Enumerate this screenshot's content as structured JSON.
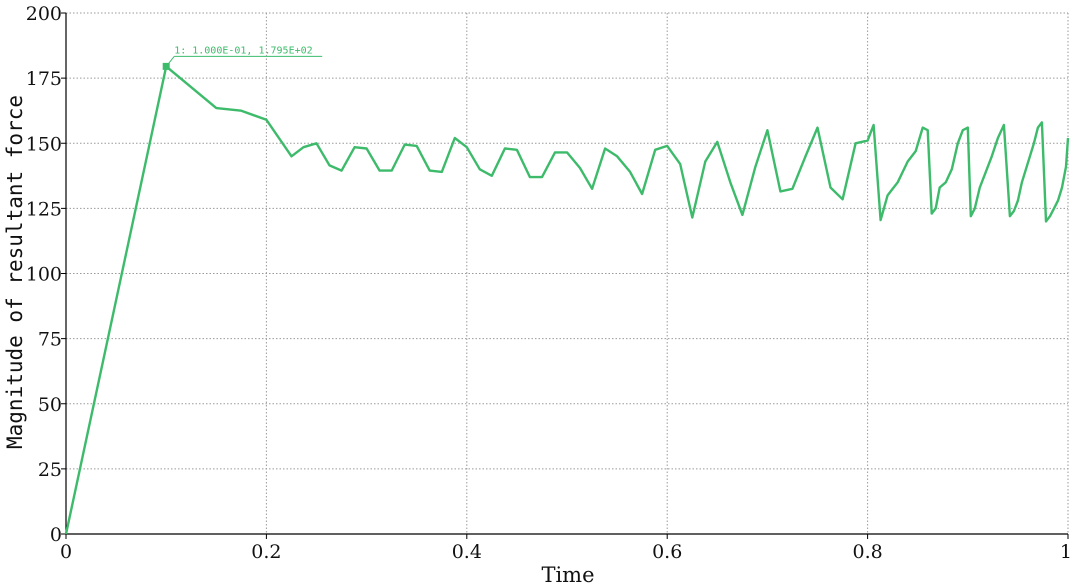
{
  "chart_data": {
    "type": "line",
    "xlabel": "Time",
    "ylabel": "Magnitude of resultant force",
    "xlim": [
      0,
      1
    ],
    "ylim": [
      0,
      200
    ],
    "xticks": [
      0,
      0.2,
      0.4,
      0.6,
      0.8,
      1
    ],
    "xtick_labels": [
      "0",
      "0.2",
      "0.4",
      "0.6",
      "0.8",
      "1"
    ],
    "yticks": [
      0,
      25,
      50,
      75,
      100,
      125,
      150,
      175,
      200
    ],
    "ytick_labels": [
      "0",
      "25",
      "50",
      "75",
      "100",
      "125",
      "150",
      "175",
      "200"
    ],
    "grid": true,
    "colors": {
      "series": "#3dbb6b",
      "grid": "#9a9a9a",
      "axis": "#000000"
    },
    "annotation": {
      "text": "1: 1.000E-01, 1.795E+02",
      "x": 0.1,
      "y": 179.5
    },
    "series": [
      {
        "x": [
          0,
          0.1,
          0.15,
          0.175,
          0.2,
          0.225,
          0.237,
          0.25,
          0.263,
          0.275,
          0.288,
          0.3,
          0.313,
          0.325,
          0.338,
          0.35,
          0.363,
          0.375,
          0.388,
          0.4,
          0.413,
          0.425,
          0.438,
          0.45,
          0.463,
          0.475,
          0.488,
          0.5,
          0.513,
          0.525,
          0.538,
          0.55,
          0.563,
          0.575,
          0.588,
          0.6,
          0.613,
          0.625,
          0.638,
          0.65,
          0.663,
          0.675,
          0.688,
          0.7,
          0.713,
          0.725,
          0.738,
          0.75,
          0.763,
          0.775,
          0.788,
          0.8,
          0.806,
          0.813,
          0.82,
          0.83,
          0.84,
          0.848,
          0.855,
          0.86,
          0.864,
          0.868,
          0.872,
          0.878,
          0.884,
          0.89,
          0.895,
          0.9,
          0.903,
          0.907,
          0.912,
          0.918,
          0.924,
          0.93,
          0.936,
          0.942,
          0.946,
          0.95,
          0.954,
          0.958,
          0.962,
          0.966,
          0.97,
          0.974,
          0.978,
          0.982,
          0.986,
          0.99,
          0.994,
          0.998,
          1.0
        ],
        "y": [
          0,
          179.5,
          163.5,
          162.5,
          159,
          145,
          148.5,
          150,
          141.5,
          139.5,
          148.5,
          148,
          139.5,
          139.5,
          149.5,
          149,
          139.5,
          139,
          152,
          148.5,
          140,
          137.5,
          148,
          147.5,
          137,
          137,
          146.5,
          146.5,
          140.5,
          132.5,
          148,
          145,
          139,
          130.5,
          147.5,
          149,
          142,
          121.5,
          143,
          150.5,
          135,
          122.5,
          141,
          155,
          131.5,
          132.5,
          145,
          156,
          133,
          128.5,
          150,
          151,
          157,
          120.5,
          130,
          135,
          143,
          147,
          156,
          155,
          123,
          125,
          133,
          135,
          140,
          150,
          155,
          156,
          122,
          125,
          133,
          139,
          145,
          152,
          157,
          122,
          124,
          128,
          135,
          140,
          145,
          150,
          156,
          158,
          120,
          122,
          125,
          128,
          133,
          141,
          152
        ]
      }
    ]
  }
}
